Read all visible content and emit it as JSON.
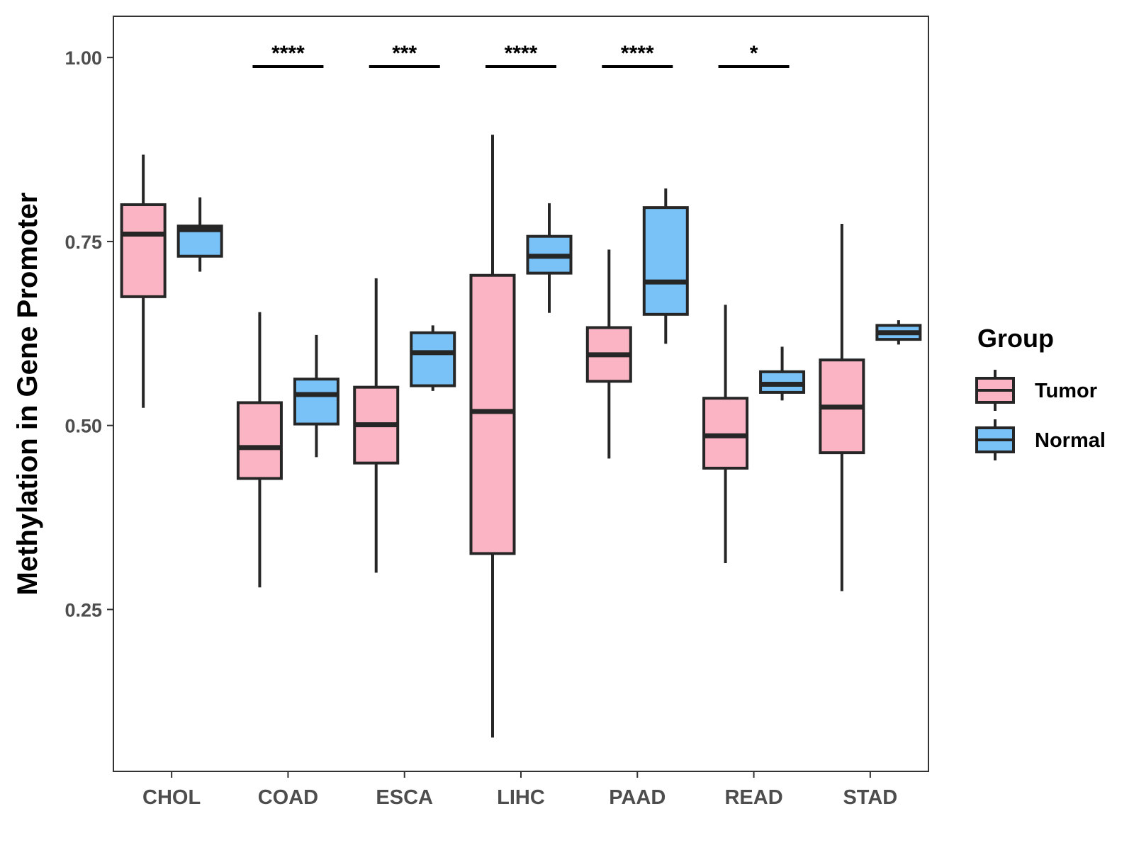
{
  "chart_data": {
    "type": "boxplot",
    "title": "",
    "xlabel": "",
    "ylabel": "Methylation in Gene Promoter",
    "ylim": [
      0.03,
      1.056
    ],
    "yticks": [
      0.25,
      0.5,
      0.75,
      1.0
    ],
    "ytick_labels": [
      "0.25",
      "0.50",
      "0.75",
      "1.00"
    ],
    "categories": [
      "CHOL",
      "COAD",
      "ESCA",
      "LIHC",
      "PAAD",
      "READ",
      "STAD"
    ],
    "legend": {
      "title": "Group",
      "position": "right",
      "entries": [
        {
          "name": "Tumor",
          "color": "#FBB4C4"
        },
        {
          "name": "Normal",
          "color": "#79C2F8"
        }
      ]
    },
    "series": [
      {
        "name": "Tumor",
        "color": "#FBB4C4",
        "boxes": [
          {
            "category": "CHOL",
            "whisker_low": 0.524,
            "q1": 0.675,
            "median": 0.76,
            "q3": 0.8,
            "whisker_high": 0.868
          },
          {
            "category": "COAD",
            "whisker_low": 0.28,
            "q1": 0.428,
            "median": 0.47,
            "q3": 0.531,
            "whisker_high": 0.654
          },
          {
            "category": "ESCA",
            "whisker_low": 0.3,
            "q1": 0.449,
            "median": 0.501,
            "q3": 0.552,
            "whisker_high": 0.7
          },
          {
            "category": "LIHC",
            "whisker_low": 0.076,
            "q1": 0.326,
            "median": 0.519,
            "q3": 0.704,
            "whisker_high": 0.895
          },
          {
            "category": "PAAD",
            "whisker_low": 0.455,
            "q1": 0.56,
            "median": 0.596,
            "q3": 0.633,
            "whisker_high": 0.739
          },
          {
            "category": "READ",
            "whisker_low": 0.313,
            "q1": 0.442,
            "median": 0.486,
            "q3": 0.537,
            "whisker_high": 0.664
          },
          {
            "category": "STAD",
            "whisker_low": 0.275,
            "q1": 0.463,
            "median": 0.525,
            "q3": 0.589,
            "whisker_high": 0.774
          }
        ]
      },
      {
        "name": "Normal",
        "color": "#79C2F8",
        "boxes": [
          {
            "category": "CHOL",
            "whisker_low": 0.709,
            "q1": 0.73,
            "median": 0.766,
            "q3": 0.771,
            "whisker_high": 0.81
          },
          {
            "category": "COAD",
            "whisker_low": 0.457,
            "q1": 0.502,
            "median": 0.542,
            "q3": 0.563,
            "whisker_high": 0.623
          },
          {
            "category": "ESCA",
            "whisker_low": 0.547,
            "q1": 0.554,
            "median": 0.599,
            "q3": 0.626,
            "whisker_high": 0.636
          },
          {
            "category": "LIHC",
            "whisker_low": 0.653,
            "q1": 0.707,
            "median": 0.73,
            "q3": 0.757,
            "whisker_high": 0.802
          },
          {
            "category": "PAAD",
            "whisker_low": 0.611,
            "q1": 0.651,
            "median": 0.695,
            "q3": 0.796,
            "whisker_high": 0.822
          },
          {
            "category": "READ",
            "whisker_low": 0.534,
            "q1": 0.545,
            "median": 0.556,
            "q3": 0.573,
            "whisker_high": 0.607
          },
          {
            "category": "STAD",
            "whisker_low": 0.61,
            "q1": 0.617,
            "median": 0.626,
            "q3": 0.636,
            "whisker_high": 0.643
          }
        ]
      }
    ],
    "significance": [
      {
        "category": "COAD",
        "label": "****"
      },
      {
        "category": "ESCA",
        "label": "***"
      },
      {
        "category": "LIHC",
        "label": "****"
      },
      {
        "category": "PAAD",
        "label": "****"
      },
      {
        "category": "READ",
        "label": "*"
      }
    ],
    "colors": {
      "box_stroke": "#262626",
      "axis": "#333333",
      "tick_text": "#4d4d4d"
    }
  }
}
